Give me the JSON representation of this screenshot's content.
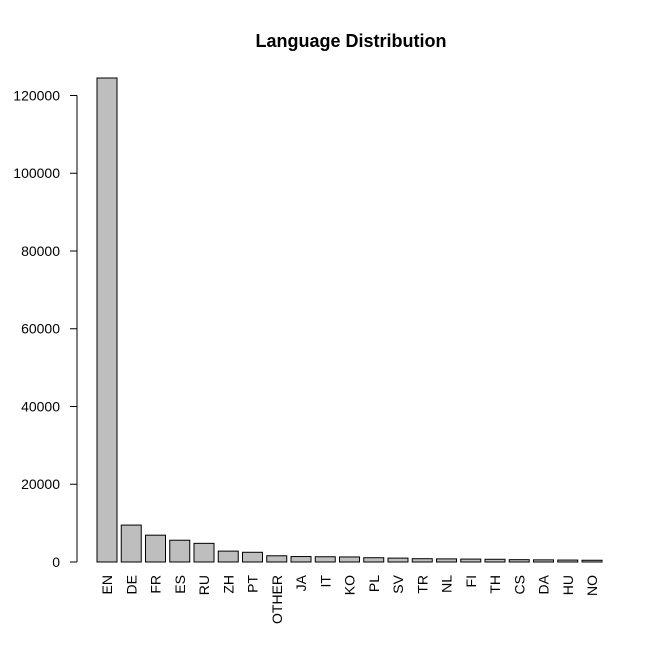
{
  "chart_data": {
    "type": "bar",
    "title": "Language Distribution",
    "xlabel": "",
    "ylabel": "",
    "categories": [
      "EN",
      "DE",
      "FR",
      "ES",
      "RU",
      "ZH",
      "PT",
      "OTHER",
      "JA",
      "IT",
      "KO",
      "PL",
      "SV",
      "TR",
      "NL",
      "FI",
      "TH",
      "CS",
      "DA",
      "HU",
      "NO"
    ],
    "values": [
      124500,
      9500,
      6900,
      5600,
      4800,
      2800,
      2500,
      1600,
      1400,
      1350,
      1300,
      1100,
      1000,
      850,
      800,
      750,
      700,
      600,
      550,
      500,
      450
    ],
    "ylim": [
      0,
      124500
    ],
    "yticks": [
      0,
      20000,
      40000,
      60000,
      80000,
      100000,
      120000
    ],
    "grid": false,
    "colors": {
      "bar_fill": "#bebebe",
      "bar_stroke": "#000000"
    }
  }
}
